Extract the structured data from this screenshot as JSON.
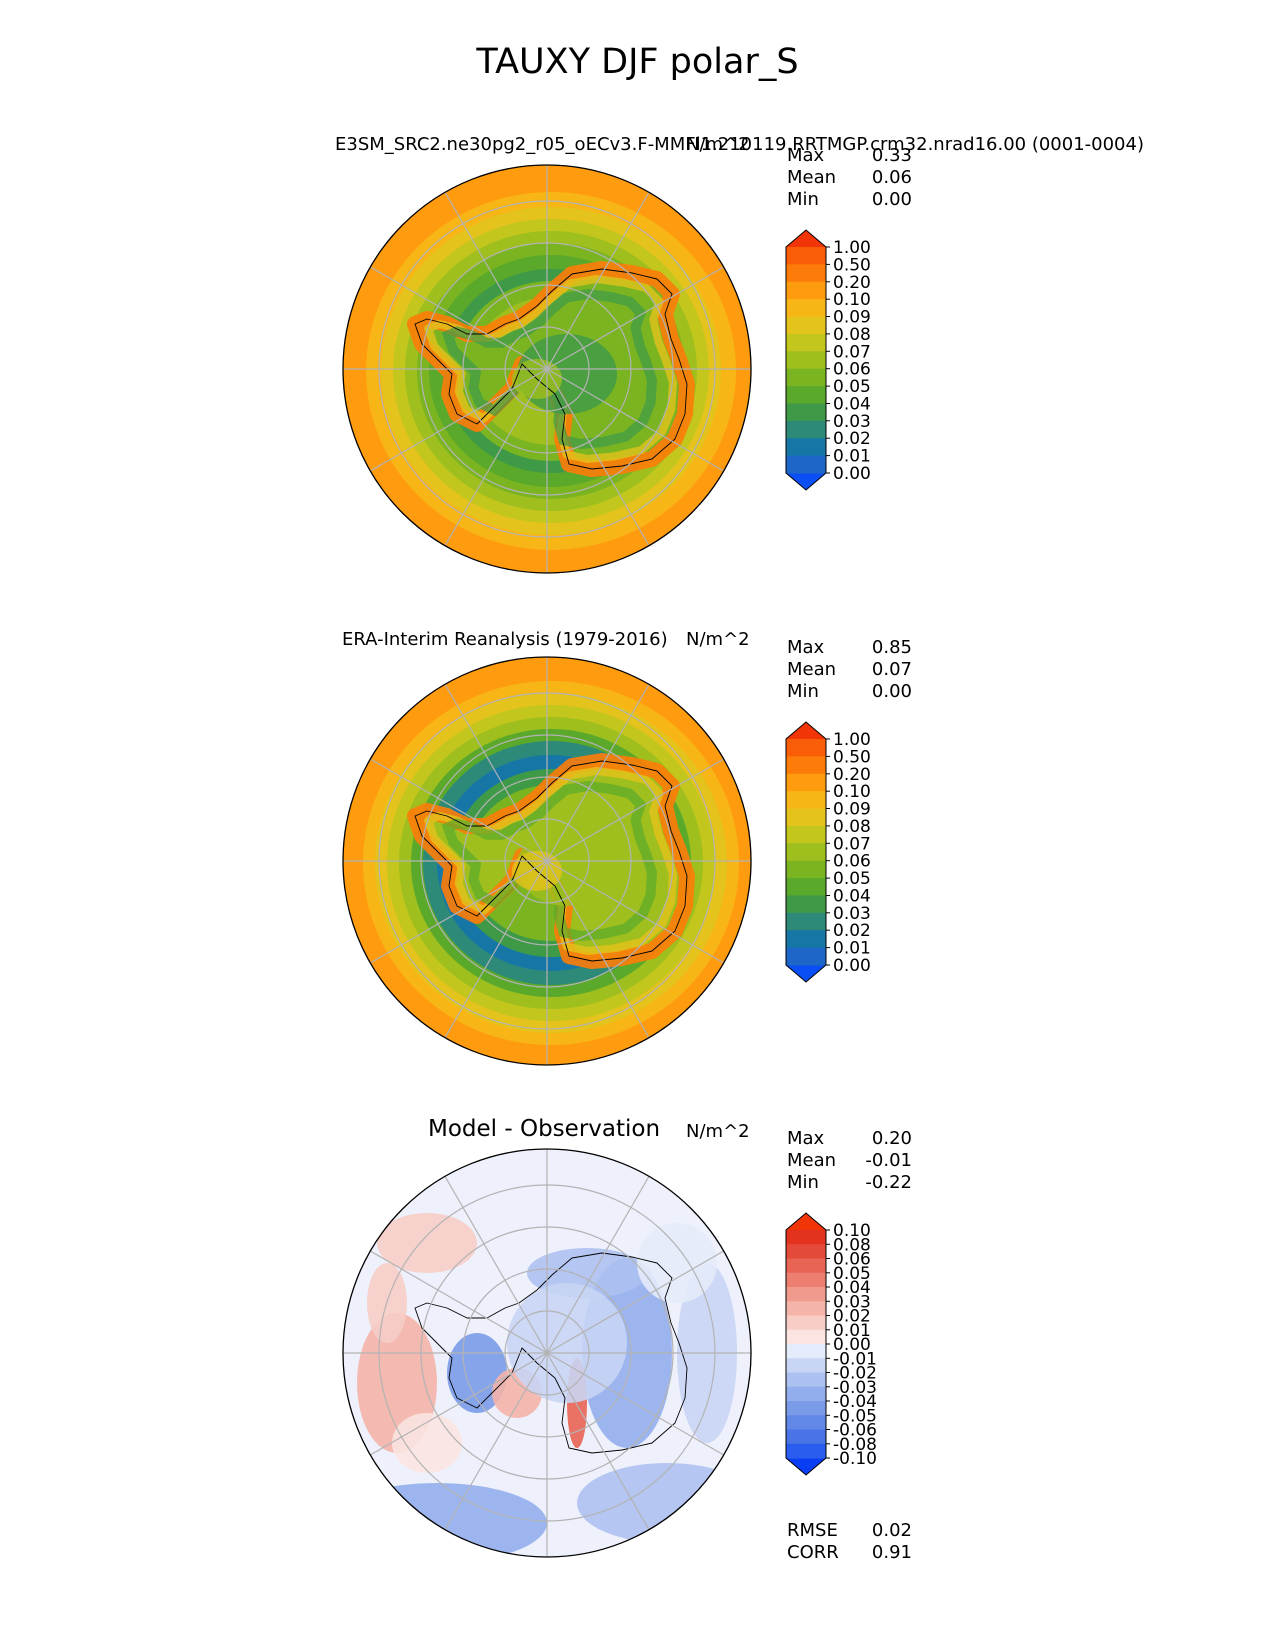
{
  "figure": {
    "suptitle": "TAUXY DJF polar_S"
  },
  "panels": [
    {
      "id": "test",
      "title": "E3SM_SRC2.ne30pg2_r05_oECv3.F-MMFl1.210119.RRTMGP.crm32.nrad16.00 (0001-0004)",
      "units": "N/m^2",
      "stats": [
        {
          "label": "Max",
          "value": "0.33"
        },
        {
          "label": "Mean",
          "value": "0.06"
        },
        {
          "label": "Min",
          "value": "0.00"
        }
      ]
    },
    {
      "id": "reference",
      "title": "ERA-Interim Reanalysis (1979-2016)",
      "units": "N/m^2",
      "stats": [
        {
          "label": "Max",
          "value": "0.85"
        },
        {
          "label": "Mean",
          "value": "0.07"
        },
        {
          "label": "Min",
          "value": "0.00"
        }
      ]
    },
    {
      "id": "difference",
      "title": "Model - Observation",
      "units": "N/m^2",
      "stats": [
        {
          "label": "Max",
          "value": "0.20"
        },
        {
          "label": "Mean",
          "value": "-0.01"
        },
        {
          "label": "Min",
          "value": "-0.22"
        }
      ],
      "metrics": [
        {
          "label": "RMSE",
          "value": "0.02"
        },
        {
          "label": "CORR",
          "value": "0.91"
        }
      ]
    }
  ],
  "chart_data": [
    {
      "type": "heatmap",
      "projection": "south-polar-stereographic",
      "title": "E3SM_SRC2.ne30pg2_r05_oECv3.F-MMFl1.210119.RRTMGP.crm32.nrad16.00 (0001-0004)",
      "units": "N/m^2",
      "colorbar": {
        "levels": [
          "0.00",
          "0.01",
          "0.02",
          "0.03",
          "0.04",
          "0.05",
          "0.06",
          "0.07",
          "0.08",
          "0.09",
          "0.10",
          "0.20",
          "0.50",
          "1.00"
        ],
        "colors": [
          "#0a4ff5",
          "#1e66c8",
          "#1677a6",
          "#2e8a78",
          "#3f9a48",
          "#5aa92b",
          "#7ab421",
          "#9ebf1d",
          "#c2c61d",
          "#e4c31c",
          "#f8b516",
          "#ff9b0e",
          "#fd7c09",
          "#f95d07",
          "#f23507"
        ],
        "extend": "both"
      }
    },
    {
      "type": "heatmap",
      "projection": "south-polar-stereographic",
      "title": "ERA-Interim Reanalysis (1979-2016)",
      "units": "N/m^2",
      "colorbar": {
        "levels": [
          "0.00",
          "0.01",
          "0.02",
          "0.03",
          "0.04",
          "0.05",
          "0.06",
          "0.07",
          "0.08",
          "0.09",
          "0.10",
          "0.20",
          "0.50",
          "1.00"
        ],
        "colors": [
          "#0a4ff5",
          "#1e66c8",
          "#1677a6",
          "#2e8a78",
          "#3f9a48",
          "#5aa92b",
          "#7ab421",
          "#9ebf1d",
          "#c2c61d",
          "#e4c31c",
          "#f8b516",
          "#ff9b0e",
          "#fd7c09",
          "#f95d07",
          "#f23507"
        ],
        "extend": "both"
      }
    },
    {
      "type": "heatmap",
      "projection": "south-polar-stereographic",
      "title": "Model - Observation",
      "units": "N/m^2",
      "colorbar": {
        "levels": [
          "-0.10",
          "-0.08",
          "-0.06",
          "-0.05",
          "-0.04",
          "-0.03",
          "-0.02",
          "-0.01",
          "0.00",
          "0.01",
          "0.02",
          "0.03",
          "0.04",
          "0.05",
          "0.06",
          "0.08",
          "0.10"
        ],
        "colors": [
          "#0a3ef5",
          "#2a5cee",
          "#4a74e6",
          "#6188e6",
          "#7a9be8",
          "#93aeec",
          "#adc1f0",
          "#c8d5f4",
          "#e4ebfa",
          "#fbe4e1",
          "#f7cdc6",
          "#f4b4aa",
          "#f09a8d",
          "#ec7f70",
          "#e86454",
          "#e54a38",
          "#e3321e",
          "#f23507"
        ],
        "extend": "both"
      }
    }
  ]
}
